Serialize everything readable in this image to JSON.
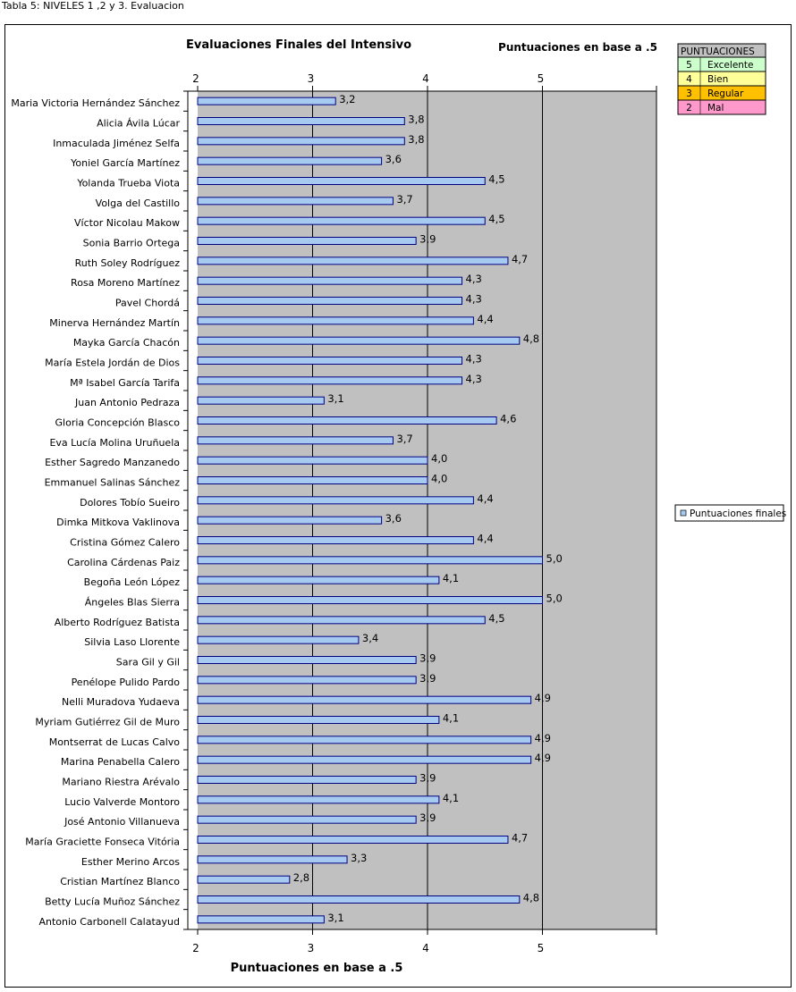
{
  "caption": "Tabla 5: NIVELES 1 ,2 y 3. Evaluacion",
  "scale_table": {
    "header": "PUNTUACIONES",
    "rows": [
      {
        "score": "5",
        "label": "Excelente",
        "color": "#ccffcc"
      },
      {
        "score": "4",
        "label": "Bien",
        "color": "#ffff99"
      },
      {
        "score": "3",
        "label": "Regular",
        "color": "#ffc000"
      },
      {
        "score": "2",
        "label": "Mal",
        "color": "#ff99cc"
      }
    ]
  },
  "colors": {
    "plot_bg": "#c0c0c0",
    "bar_fill": "#a6caf0",
    "bar_stroke": "#000080",
    "header_bg": "#c0c0c0"
  },
  "chart_data": {
    "type": "bar",
    "orientation": "horizontal",
    "title": "Evaluaciones Finales del Intensivo",
    "subtitle": "Puntuaciones en base a .5",
    "xlabel": "Puntuaciones en base a .5",
    "ylabel": "",
    "xlim": [
      2,
      6
    ],
    "ticks": [
      {
        "value": 2,
        "label": "2"
      },
      {
        "value": 3,
        "label": "3"
      },
      {
        "value": 4,
        "label": "4"
      },
      {
        "value": 5,
        "label": "5"
      }
    ],
    "gridlines": [
      3,
      4,
      5
    ],
    "legend": {
      "entry": "Puntuaciones finales",
      "position": "right"
    },
    "series": [
      {
        "name": "Puntuaciones finales",
        "points": [
          {
            "name": "Maria Victoria Hernández Sánchez",
            "value": 3.2,
            "label": "3,2"
          },
          {
            "name": "Alicia Ávila Lúcar",
            "value": 3.8,
            "label": "3,8"
          },
          {
            "name": "Inmaculada Jiménez Selfa",
            "value": 3.8,
            "label": "3,8"
          },
          {
            "name": "Yoniel García Martínez",
            "value": 3.6,
            "label": "3,6"
          },
          {
            "name": "Yolanda Trueba Viota",
            "value": 4.5,
            "label": "4,5"
          },
          {
            "name": "Volga del Castillo",
            "value": 3.7,
            "label": "3,7"
          },
          {
            "name": "Víctor Nicolau Makow",
            "value": 4.5,
            "label": "4,5"
          },
          {
            "name": "Sonia Barrio Ortega",
            "value": 3.9,
            "label": "3,9"
          },
          {
            "name": "Ruth Soley Rodríguez",
            "value": 4.7,
            "label": "4,7"
          },
          {
            "name": "Rosa Moreno Martínez",
            "value": 4.3,
            "label": "4,3"
          },
          {
            "name": "Pavel Chordá",
            "value": 4.3,
            "label": "4,3"
          },
          {
            "name": "Minerva Hernández Martín",
            "value": 4.4,
            "label": "4,4"
          },
          {
            "name": "Mayka García Chacón",
            "value": 4.8,
            "label": "4,8"
          },
          {
            "name": "María Estela Jordán de Dios",
            "value": 4.3,
            "label": "4,3"
          },
          {
            "name": "Mª Isabel García Tarifa",
            "value": 4.3,
            "label": "4,3"
          },
          {
            "name": "Juan Antonio Pedraza",
            "value": 3.1,
            "label": "3,1"
          },
          {
            "name": "Gloria Concepción Blasco",
            "value": 4.6,
            "label": "4,6"
          },
          {
            "name": "Eva Lucía Molina Uruñuela",
            "value": 3.7,
            "label": "3,7"
          },
          {
            "name": "Esther Sagredo Manzanedo",
            "value": 4.0,
            "label": "4,0"
          },
          {
            "name": "Emmanuel Salinas Sánchez",
            "value": 4.0,
            "label": "4,0"
          },
          {
            "name": "Dolores Tobío Sueiro",
            "value": 4.4,
            "label": "4,4"
          },
          {
            "name": "Dimka Mitkova Vaklinova",
            "value": 3.6,
            "label": "3,6"
          },
          {
            "name": "Cristina Gómez Calero",
            "value": 4.4,
            "label": "4,4"
          },
          {
            "name": "Carolina Cárdenas Paiz",
            "value": 5.0,
            "label": "5,0"
          },
          {
            "name": "Begoña León López",
            "value": 4.1,
            "label": "4,1"
          },
          {
            "name": "Ángeles Blas Sierra",
            "value": 5.0,
            "label": "5,0"
          },
          {
            "name": "Alberto Rodríguez Batista",
            "value": 4.5,
            "label": "4,5"
          },
          {
            "name": "Silvia Laso Llorente",
            "value": 3.4,
            "label": "3,4"
          },
          {
            "name": "Sara Gil y Gil",
            "value": 3.9,
            "label": "3,9"
          },
          {
            "name": "Penélope Pulido Pardo",
            "value": 3.9,
            "label": "3,9"
          },
          {
            "name": "Nelli Muradova Yudaeva",
            "value": 4.9,
            "label": "4,9"
          },
          {
            "name": "Myriam Gutiérrez Gil de Muro",
            "value": 4.1,
            "label": "4,1"
          },
          {
            "name": "Montserrat de Lucas Calvo",
            "value": 4.9,
            "label": "4,9"
          },
          {
            "name": "Marina Penabella Calero",
            "value": 4.9,
            "label": "4,9"
          },
          {
            "name": "Mariano Riestra Arévalo",
            "value": 3.9,
            "label": "3,9"
          },
          {
            "name": "Lucio Valverde Montoro",
            "value": 4.1,
            "label": "4,1"
          },
          {
            "name": "José Antonio Villanueva",
            "value": 3.9,
            "label": "3,9"
          },
          {
            "name": "María Graciette Fonseca Vitória",
            "value": 4.7,
            "label": "4,7"
          },
          {
            "name": "Esther Merino Arcos",
            "value": 3.3,
            "label": "3,3"
          },
          {
            "name": "Cristian Martínez Blanco",
            "value": 2.8,
            "label": "2,8"
          },
          {
            "name": "Betty Lucía Muñoz Sánchez",
            "value": 4.8,
            "label": "4,8"
          },
          {
            "name": "Antonio Carbonell Calatayud",
            "value": 3.1,
            "label": "3,1"
          }
        ]
      }
    ]
  }
}
